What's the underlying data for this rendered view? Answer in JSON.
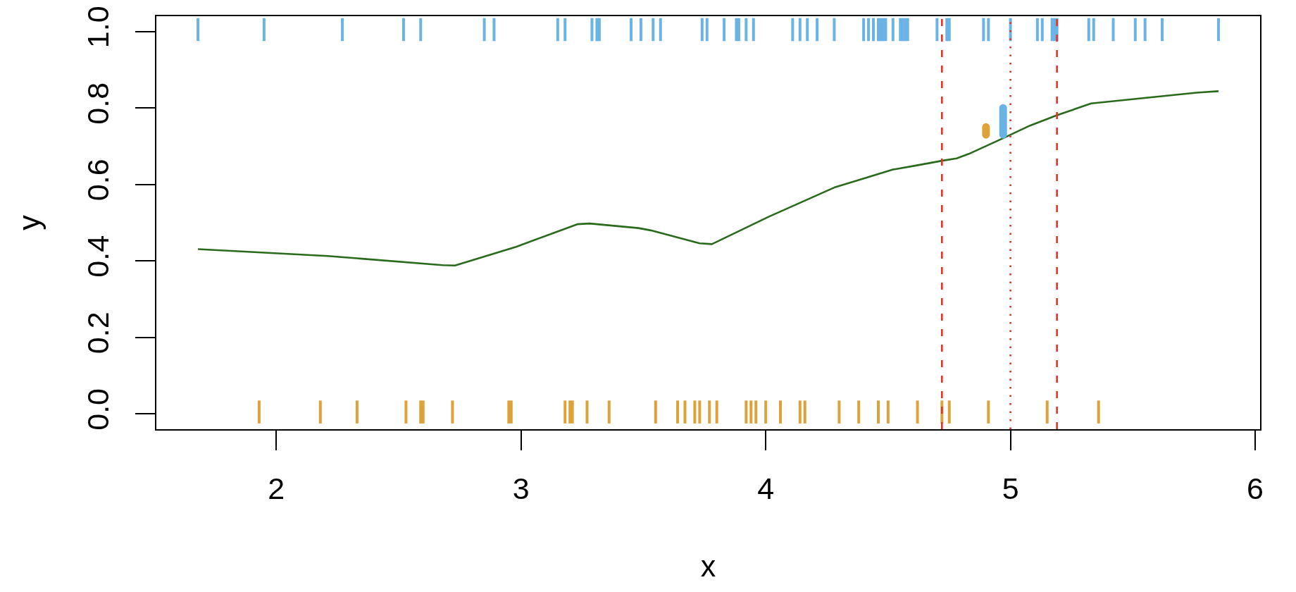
{
  "chart_data": {
    "type": "line",
    "xlabel": "x",
    "ylabel": "y",
    "xlim": [
      1.51,
      6.02
    ],
    "ylim": [
      -0.04,
      1.04
    ],
    "xticks": [
      2,
      3,
      4,
      5,
      6
    ],
    "yticks": [
      {
        "value": 0,
        "label": "0.0"
      },
      {
        "value": 0.2,
        "label": "0.2"
      },
      {
        "value": 0.4,
        "label": "0.4"
      },
      {
        "value": 0.6,
        "label": "0.6"
      },
      {
        "value": 0.8,
        "label": "0.8"
      },
      {
        "value": 1,
        "label": "1.0"
      }
    ],
    "grid": false,
    "line_style": "solid",
    "marker": "none",
    "series": [
      {
        "color": "#2a6a1c",
        "x": [
          1.68,
          2.21,
          2.68,
          2.73,
          2.98,
          3.23,
          3.28,
          3.48,
          3.53,
          3.73,
          3.78,
          4.01,
          4.28,
          4.52,
          4.61,
          4.72,
          4.78,
          4.83,
          4.97,
          5.08,
          5.19,
          5.33,
          5.76,
          5.85
        ],
        "values": [
          0.431,
          0.413,
          0.389,
          0.388,
          0.437,
          0.496,
          0.498,
          0.486,
          0.48,
          0.446,
          0.444,
          0.515,
          0.592,
          0.639,
          0.649,
          0.662,
          0.668,
          0.68,
          0.721,
          0.754,
          0.781,
          0.812,
          0.84,
          0.844
        ]
      },
      {
        "color": "#6ab3e5",
        "x": [
          1.68,
          1.68
        ],
        "values": [
          0.975,
          1.035
        ]
      },
      {
        "color": "#6ab3e5",
        "x": [
          1.95,
          1.95
        ],
        "values": [
          0.975,
          1.035
        ]
      },
      {
        "color": "#6ab3e5",
        "x": [
          2.27,
          2.27
        ],
        "values": [
          0.975,
          1.035
        ]
      },
      {
        "color": "#6ab3e5",
        "x": [
          2.52,
          2.52
        ],
        "values": [
          0.975,
          1.035
        ]
      },
      {
        "color": "#6ab3e5",
        "x": [
          2.59,
          2.59
        ],
        "values": [
          0.975,
          1.035
        ]
      },
      {
        "color": "#6ab3e5",
        "x": [
          2.85,
          2.85
        ],
        "values": [
          0.975,
          1.035
        ]
      },
      {
        "color": "#6ab3e5",
        "x": [
          2.89,
          2.89
        ],
        "values": [
          0.975,
          1.035
        ]
      },
      {
        "color": "#6ab3e5",
        "x": [
          3.15,
          3.15
        ],
        "values": [
          0.975,
          1.035
        ]
      },
      {
        "color": "#6ab3e5",
        "x": [
          3.18,
          3.18
        ],
        "values": [
          0.975,
          1.035
        ]
      },
      {
        "color": "#6ab3e5",
        "x": [
          3.29,
          3.29
        ],
        "values": [
          0.975,
          1.035
        ]
      },
      {
        "color": "#6ab3e5",
        "x": [
          3.31,
          3.31
        ],
        "values": [
          0.975,
          1.035
        ]
      },
      {
        "color": "#6ab3e5",
        "x": [
          3.32,
          3.32
        ],
        "values": [
          0.975,
          1.035
        ]
      },
      {
        "color": "#6ab3e5",
        "x": [
          3.45,
          3.45
        ],
        "values": [
          0.975,
          1.035
        ]
      },
      {
        "color": "#6ab3e5",
        "x": [
          3.49,
          3.49
        ],
        "values": [
          0.975,
          1.035
        ]
      },
      {
        "color": "#6ab3e5",
        "x": [
          3.54,
          3.54
        ],
        "values": [
          0.975,
          1.035
        ]
      },
      {
        "color": "#6ab3e5",
        "x": [
          3.57,
          3.57
        ],
        "values": [
          0.975,
          1.035
        ]
      },
      {
        "color": "#6ab3e5",
        "x": [
          3.74,
          3.74
        ],
        "values": [
          0.975,
          1.035
        ]
      },
      {
        "color": "#6ab3e5",
        "x": [
          3.76,
          3.76
        ],
        "values": [
          0.975,
          1.035
        ]
      },
      {
        "color": "#6ab3e5",
        "x": [
          3.83,
          3.83
        ],
        "values": [
          0.975,
          1.035
        ]
      },
      {
        "color": "#6ab3e5",
        "x": [
          3.88,
          3.88
        ],
        "values": [
          0.975,
          1.035
        ]
      },
      {
        "color": "#6ab3e5",
        "x": [
          3.89,
          3.89
        ],
        "values": [
          0.975,
          1.035
        ]
      },
      {
        "color": "#6ab3e5",
        "x": [
          3.92,
          3.92
        ],
        "values": [
          0.975,
          1.035
        ]
      },
      {
        "color": "#6ab3e5",
        "x": [
          3.95,
          3.95
        ],
        "values": [
          0.975,
          1.035
        ]
      },
      {
        "color": "#6ab3e5",
        "x": [
          4.11,
          4.11
        ],
        "values": [
          0.975,
          1.035
        ]
      },
      {
        "color": "#6ab3e5",
        "x": [
          4.14,
          4.14
        ],
        "values": [
          0.975,
          1.035
        ]
      },
      {
        "color": "#6ab3e5",
        "x": [
          4.17,
          4.17
        ],
        "values": [
          0.975,
          1.035
        ]
      },
      {
        "color": "#6ab3e5",
        "x": [
          4.21,
          4.21
        ],
        "values": [
          0.975,
          1.035
        ]
      },
      {
        "color": "#6ab3e5",
        "x": [
          4.28,
          4.28
        ],
        "values": [
          0.975,
          1.035
        ]
      },
      {
        "color": "#6ab3e5",
        "x": [
          4.4,
          4.4
        ],
        "values": [
          0.975,
          1.035
        ]
      },
      {
        "color": "#6ab3e5",
        "x": [
          4.42,
          4.42
        ],
        "values": [
          0.975,
          1.035
        ]
      },
      {
        "color": "#6ab3e5",
        "x": [
          4.44,
          4.44
        ],
        "values": [
          0.975,
          1.035
        ]
      },
      {
        "color": "#6ab3e5",
        "x": [
          4.46,
          4.46
        ],
        "values": [
          0.975,
          1.035
        ]
      },
      {
        "color": "#6ab3e5",
        "x": [
          4.47,
          4.47
        ],
        "values": [
          0.975,
          1.035
        ]
      },
      {
        "color": "#6ab3e5",
        "x": [
          4.48,
          4.48
        ],
        "values": [
          0.975,
          1.035
        ]
      },
      {
        "color": "#6ab3e5",
        "x": [
          4.49,
          4.49
        ],
        "values": [
          0.975,
          1.035
        ]
      },
      {
        "color": "#6ab3e5",
        "x": [
          4.52,
          4.52
        ],
        "values": [
          0.975,
          1.035
        ]
      },
      {
        "color": "#6ab3e5",
        "x": [
          4.55,
          4.55
        ],
        "values": [
          0.975,
          1.035
        ]
      },
      {
        "color": "#6ab3e5",
        "x": [
          4.56,
          4.56
        ],
        "values": [
          0.975,
          1.035
        ]
      },
      {
        "color": "#6ab3e5",
        "x": [
          4.57,
          4.57
        ],
        "values": [
          0.975,
          1.035
        ]
      },
      {
        "color": "#6ab3e5",
        "x": [
          4.58,
          4.58
        ],
        "values": [
          0.975,
          1.035
        ]
      },
      {
        "color": "#6ab3e5",
        "x": [
          4.7,
          4.7
        ],
        "values": [
          0.975,
          1.035
        ]
      },
      {
        "color": "#6ab3e5",
        "x": [
          4.74,
          4.74
        ],
        "values": [
          0.975,
          1.035
        ]
      },
      {
        "color": "#6ab3e5",
        "x": [
          4.75,
          4.75
        ],
        "values": [
          0.975,
          1.035
        ]
      },
      {
        "color": "#6ab3e5",
        "x": [
          4.89,
          4.89
        ],
        "values": [
          0.975,
          1.035
        ]
      },
      {
        "color": "#6ab3e5",
        "x": [
          4.91,
          4.91
        ],
        "values": [
          0.975,
          1.035
        ]
      },
      {
        "color": "#6ab3e5",
        "x": [
          5.0,
          5.0
        ],
        "values": [
          0.975,
          1.035
        ]
      },
      {
        "color": "#6ab3e5",
        "x": [
          5.11,
          5.11
        ],
        "values": [
          0.975,
          1.035
        ]
      },
      {
        "color": "#6ab3e5",
        "x": [
          5.13,
          5.13
        ],
        "values": [
          0.975,
          1.035
        ]
      },
      {
        "color": "#6ab3e5",
        "x": [
          5.17,
          5.17
        ],
        "values": [
          0.975,
          1.035
        ]
      },
      {
        "color": "#6ab3e5",
        "x": [
          5.18,
          5.18
        ],
        "values": [
          0.975,
          1.035
        ]
      },
      {
        "color": "#6ab3e5",
        "x": [
          5.19,
          5.19
        ],
        "values": [
          0.975,
          1.035
        ]
      },
      {
        "color": "#6ab3e5",
        "x": [
          5.32,
          5.32
        ],
        "values": [
          0.975,
          1.035
        ]
      },
      {
        "color": "#6ab3e5",
        "x": [
          5.34,
          5.34
        ],
        "values": [
          0.975,
          1.035
        ]
      },
      {
        "color": "#6ab3e5",
        "x": [
          5.42,
          5.42
        ],
        "values": [
          0.975,
          1.035
        ]
      },
      {
        "color": "#6ab3e5",
        "x": [
          5.51,
          5.51
        ],
        "values": [
          0.975,
          1.035
        ]
      },
      {
        "color": "#6ab3e5",
        "x": [
          5.55,
          5.55
        ],
        "values": [
          0.975,
          1.035
        ]
      },
      {
        "color": "#6ab3e5",
        "x": [
          5.62,
          5.62
        ],
        "values": [
          0.975,
          1.035
        ]
      },
      {
        "color": "#6ab3e5",
        "x": [
          5.85,
          5.85
        ],
        "values": [
          0.975,
          1.035
        ]
      },
      {
        "color": "#dea23b",
        "x": [
          1.93,
          1.93
        ],
        "values": [
          -0.025,
          0.035
        ]
      },
      {
        "color": "#dea23b",
        "x": [
          2.18,
          2.18
        ],
        "values": [
          -0.025,
          0.035
        ]
      },
      {
        "color": "#dea23b",
        "x": [
          2.33,
          2.33
        ],
        "values": [
          -0.025,
          0.035
        ]
      },
      {
        "color": "#dea23b",
        "x": [
          2.53,
          2.53
        ],
        "values": [
          -0.025,
          0.035
        ]
      },
      {
        "color": "#dea23b",
        "x": [
          2.59,
          2.59
        ],
        "values": [
          -0.025,
          0.035
        ]
      },
      {
        "color": "#dea23b",
        "x": [
          2.6,
          2.6
        ],
        "values": [
          -0.025,
          0.035
        ]
      },
      {
        "color": "#dea23b",
        "x": [
          2.72,
          2.72
        ],
        "values": [
          -0.025,
          0.035
        ]
      },
      {
        "color": "#dea23b",
        "x": [
          2.95,
          2.95
        ],
        "values": [
          -0.025,
          0.035
        ]
      },
      {
        "color": "#dea23b",
        "x": [
          2.96,
          2.96
        ],
        "values": [
          -0.025,
          0.035
        ]
      },
      {
        "color": "#dea23b",
        "x": [
          3.18,
          3.18
        ],
        "values": [
          -0.025,
          0.035
        ]
      },
      {
        "color": "#dea23b",
        "x": [
          3.2,
          3.2
        ],
        "values": [
          -0.025,
          0.035
        ]
      },
      {
        "color": "#dea23b",
        "x": [
          3.21,
          3.21
        ],
        "values": [
          -0.025,
          0.035
        ]
      },
      {
        "color": "#dea23b",
        "x": [
          3.27,
          3.27
        ],
        "values": [
          -0.025,
          0.035
        ]
      },
      {
        "color": "#dea23b",
        "x": [
          3.36,
          3.36
        ],
        "values": [
          -0.025,
          0.035
        ]
      },
      {
        "color": "#dea23b",
        "x": [
          3.55,
          3.55
        ],
        "values": [
          -0.025,
          0.035
        ]
      },
      {
        "color": "#dea23b",
        "x": [
          3.64,
          3.64
        ],
        "values": [
          -0.025,
          0.035
        ]
      },
      {
        "color": "#dea23b",
        "x": [
          3.67,
          3.67
        ],
        "values": [
          -0.025,
          0.035
        ]
      },
      {
        "color": "#dea23b",
        "x": [
          3.71,
          3.71
        ],
        "values": [
          -0.025,
          0.035
        ]
      },
      {
        "color": "#dea23b",
        "x": [
          3.73,
          3.73
        ],
        "values": [
          -0.025,
          0.035
        ]
      },
      {
        "color": "#dea23b",
        "x": [
          3.77,
          3.77
        ],
        "values": [
          -0.025,
          0.035
        ]
      },
      {
        "color": "#dea23b",
        "x": [
          3.8,
          3.8
        ],
        "values": [
          -0.025,
          0.035
        ]
      },
      {
        "color": "#dea23b",
        "x": [
          3.92,
          3.92
        ],
        "values": [
          -0.025,
          0.035
        ]
      },
      {
        "color": "#dea23b",
        "x": [
          3.94,
          3.94
        ],
        "values": [
          -0.025,
          0.035
        ]
      },
      {
        "color": "#dea23b",
        "x": [
          3.96,
          3.96
        ],
        "values": [
          -0.025,
          0.035
        ]
      },
      {
        "color": "#dea23b",
        "x": [
          4.0,
          4.0
        ],
        "values": [
          -0.025,
          0.035
        ]
      },
      {
        "color": "#dea23b",
        "x": [
          4.06,
          4.06
        ],
        "values": [
          -0.025,
          0.035
        ]
      },
      {
        "color": "#dea23b",
        "x": [
          4.14,
          4.14
        ],
        "values": [
          -0.025,
          0.035
        ]
      },
      {
        "color": "#dea23b",
        "x": [
          4.16,
          4.16
        ],
        "values": [
          -0.025,
          0.035
        ]
      },
      {
        "color": "#dea23b",
        "x": [
          4.3,
          4.3
        ],
        "values": [
          -0.025,
          0.035
        ]
      },
      {
        "color": "#dea23b",
        "x": [
          4.38,
          4.38
        ],
        "values": [
          -0.025,
          0.035
        ]
      },
      {
        "color": "#dea23b",
        "x": [
          4.46,
          4.46
        ],
        "values": [
          -0.025,
          0.035
        ]
      },
      {
        "color": "#dea23b",
        "x": [
          4.5,
          4.5
        ],
        "values": [
          -0.025,
          0.035
        ]
      },
      {
        "color": "#dea23b",
        "x": [
          4.62,
          4.62
        ],
        "values": [
          -0.025,
          0.035
        ]
      },
      {
        "color": "#dea23b",
        "x": [
          4.72,
          4.72
        ],
        "values": [
          -0.025,
          0.035
        ]
      },
      {
        "color": "#dea23b",
        "x": [
          4.75,
          4.75
        ],
        "values": [
          -0.025,
          0.035
        ]
      },
      {
        "color": "#dea23b",
        "x": [
          4.91,
          4.91
        ],
        "values": [
          -0.025,
          0.035
        ]
      },
      {
        "color": "#dea23b",
        "x": [
          5.15,
          5.15
        ],
        "values": [
          -0.025,
          0.035
        ]
      },
      {
        "color": "#dea23b",
        "x": [
          5.36,
          5.36
        ],
        "values": [
          -0.025,
          0.035
        ]
      },
      {
        "color": "#6ab3e5",
        "x": [
          4.97,
          4.97
        ],
        "values": [
          0.73,
          0.8
        ]
      },
      {
        "color": "#dea23b",
        "x": [
          4.9,
          4.9
        ],
        "values": [
          0.73,
          0.75
        ]
      }
    ],
    "ref_lines": [
      {
        "axis": "x",
        "value": 4.72,
        "line_style": "dashed",
        "color": "#e5332a"
      },
      {
        "axis": "x",
        "value": 5.0,
        "line_style": "dotted",
        "color": "#e5332a"
      },
      {
        "axis": "x",
        "value": 5.19,
        "line_style": "dashed",
        "color": "#e5332a"
      }
    ]
  }
}
